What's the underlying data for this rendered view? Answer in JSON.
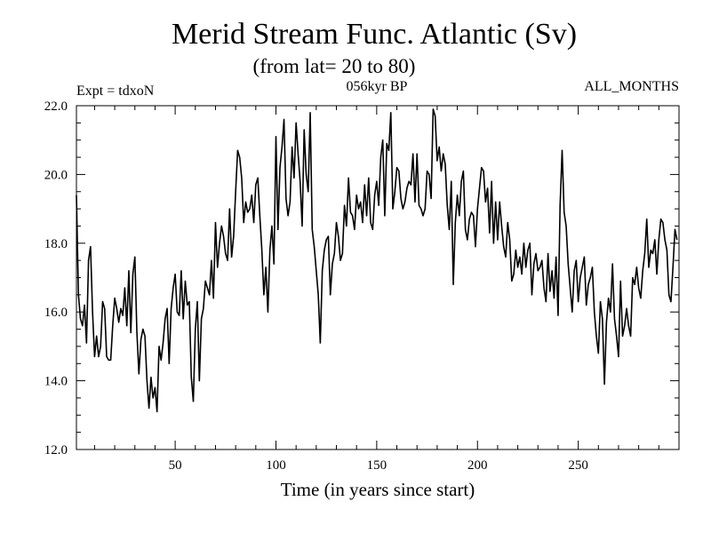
{
  "chart_data": {
    "type": "line",
    "title": "Merid Stream Func. Atlantic (Sv)",
    "subtitle": "(from lat= 20 to 80)",
    "annotation_left": "Expt = tdxoN",
    "annotation_center": "056kyr BP",
    "annotation_right": "ALL_MONTHS",
    "xlabel": "Time (in years since start)",
    "ylabel": "",
    "xlim": [
      1,
      300
    ],
    "ylim": [
      12.0,
      22.0
    ],
    "x_ticks": [
      50,
      100,
      150,
      200,
      250
    ],
    "x_tick_labels": [
      "50",
      "100",
      "150",
      "200",
      "250"
    ],
    "y_ticks": [
      12.0,
      14.0,
      16.0,
      18.0,
      20.0,
      22.0
    ],
    "y_tick_labels": [
      "12.0",
      "14.0",
      "16.0",
      "18.0",
      "20.0",
      "22.0"
    ],
    "grid": false,
    "series": [
      {
        "name": "tdxoN",
        "color": "#000000",
        "x_start": 1,
        "x_step": 1,
        "values": [
          19.4,
          16.5,
          15.8,
          15.6,
          16.2,
          15.1,
          17.5,
          17.9,
          16.0,
          14.7,
          15.3,
          14.7,
          15.0,
          16.3,
          16.1,
          14.7,
          14.6,
          14.6,
          15.6,
          16.4,
          16.1,
          15.7,
          16.1,
          15.9,
          16.7,
          15.6,
          17.2,
          15.4,
          17.1,
          17.6,
          15.4,
          14.2,
          15.2,
          15.5,
          15.3,
          14.0,
          13.2,
          14.1,
          13.5,
          13.8,
          13.1,
          15.0,
          14.6,
          15.1,
          15.8,
          16.1,
          14.5,
          16.1,
          16.7,
          17.1,
          16.0,
          15.9,
          17.2,
          15.8,
          16.9,
          16.2,
          16.3,
          14.1,
          13.4,
          15.5,
          16.3,
          14.0,
          15.8,
          16.1,
          16.9,
          16.7,
          16.5,
          17.5,
          16.4,
          18.6,
          17.3,
          18.0,
          18.5,
          18.2,
          17.7,
          17.5,
          19.0,
          17.6,
          18.2,
          19.5,
          20.7,
          20.5,
          19.9,
          18.6,
          19.2,
          18.9,
          19.0,
          19.4,
          18.6,
          19.7,
          19.9,
          18.8,
          17.8,
          16.5,
          17.3,
          16.0,
          17.8,
          18.5,
          17.4,
          21.1,
          18.4,
          20.2,
          20.8,
          21.6,
          19.3,
          18.8,
          19.2,
          20.8,
          19.9,
          21.5,
          20.6,
          19.8,
          18.5,
          21.3,
          20.0,
          19.5,
          21.8,
          18.4,
          17.9,
          17.2,
          16.5,
          15.1,
          17.2,
          17.8,
          18.1,
          18.2,
          16.5,
          17.4,
          17.7,
          18.6,
          18.2,
          17.5,
          17.7,
          19.1,
          18.5,
          19.9,
          18.9,
          18.8,
          18.4,
          19.4,
          19.0,
          19.2,
          18.6,
          19.7,
          18.8,
          19.9,
          18.6,
          18.4,
          19.4,
          19.8,
          19.1,
          20.5,
          21.0,
          18.8,
          20.9,
          20.7,
          21.8,
          19.0,
          19.5,
          20.2,
          20.1,
          19.3,
          19.0,
          19.2,
          19.6,
          19.8,
          19.7,
          20.6,
          19.2,
          20.6,
          19.1,
          19.0,
          18.8,
          19.0,
          20.1,
          20.0,
          19.3,
          21.9,
          21.7,
          20.4,
          20.8,
          20.1,
          20.6,
          20.3,
          19.1,
          18.4,
          19.8,
          16.8,
          18.6,
          19.4,
          18.8,
          19.8,
          20.1,
          18.4,
          18.1,
          18.7,
          18.9,
          18.8,
          17.9,
          19.0,
          19.6,
          20.2,
          20.1,
          19.2,
          19.6,
          18.3,
          19.8,
          18.0,
          19.2,
          18.1,
          19.2,
          18.5,
          17.9,
          17.6,
          18.6,
          18.1,
          16.9,
          17.1,
          17.8,
          17.3,
          17.6,
          17.1,
          18.0,
          17.3,
          17.8,
          18.0,
          16.5,
          17.4,
          17.7,
          17.2,
          17.3,
          17.5,
          16.7,
          16.3,
          17.7,
          16.6,
          17.2,
          16.4,
          17.6,
          15.9,
          19.1,
          20.7,
          18.9,
          18.5,
          17.4,
          16.7,
          16.0,
          17.2,
          17.5,
          16.3,
          17.0,
          17.3,
          17.6,
          16.2,
          16.8,
          17.0,
          17.3,
          16.0,
          15.3,
          14.8,
          16.3,
          15.8,
          13.9,
          15.7,
          16.4,
          16.0,
          17.4,
          15.8,
          15.3,
          14.7,
          16.9,
          15.3,
          15.6,
          16.1,
          15.6,
          15.3,
          17.0,
          16.8,
          17.3,
          16.7,
          16.4,
          17.2,
          17.7,
          18.7,
          17.3,
          17.8,
          17.7,
          18.1,
          17.1,
          18.1,
          18.7,
          18.6,
          18.1,
          17.8,
          16.5,
          16.3,
          17.3,
          18.4,
          18.1
        ]
      }
    ]
  }
}
